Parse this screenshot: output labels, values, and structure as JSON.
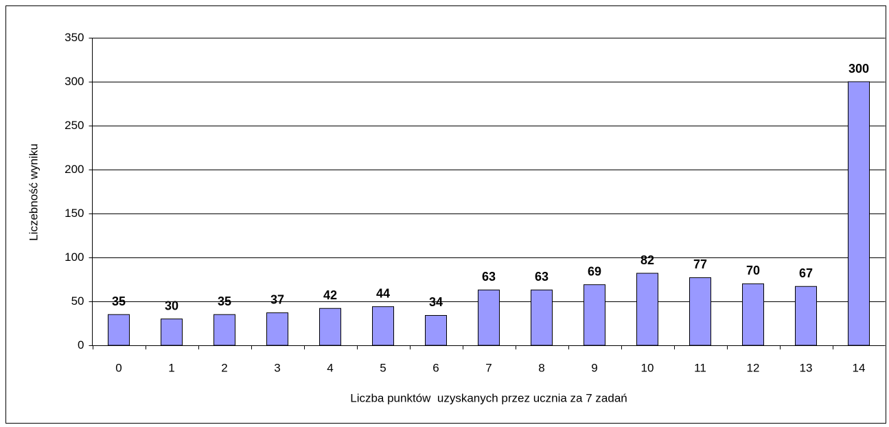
{
  "chart_data": {
    "type": "bar",
    "x_label": "Liczba punktów  uzyskanych przez ucznia za 7 zadań",
    "y_label": "Liczebność wyniku",
    "categories": [
      "0",
      "1",
      "2",
      "3",
      "4",
      "5",
      "6",
      "7",
      "8",
      "9",
      "10",
      "11",
      "12",
      "13",
      "14"
    ],
    "values": [
      35,
      30,
      35,
      37,
      42,
      44,
      34,
      63,
      63,
      69,
      82,
      77,
      70,
      67,
      300
    ],
    "color": "#9999ff",
    "ylim": [
      0,
      350
    ],
    "yticks": [
      0,
      50,
      100,
      150,
      200,
      250,
      300,
      350
    ],
    "grid": true
  }
}
